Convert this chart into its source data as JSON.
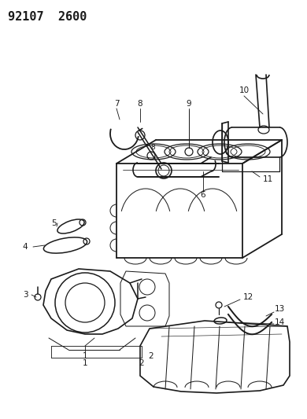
{
  "title": "92107  2600",
  "bg_color": "#ffffff",
  "line_color": "#1a1a1a",
  "title_fontsize": 11,
  "label_fontsize": 7.5,
  "lw": 0.9
}
